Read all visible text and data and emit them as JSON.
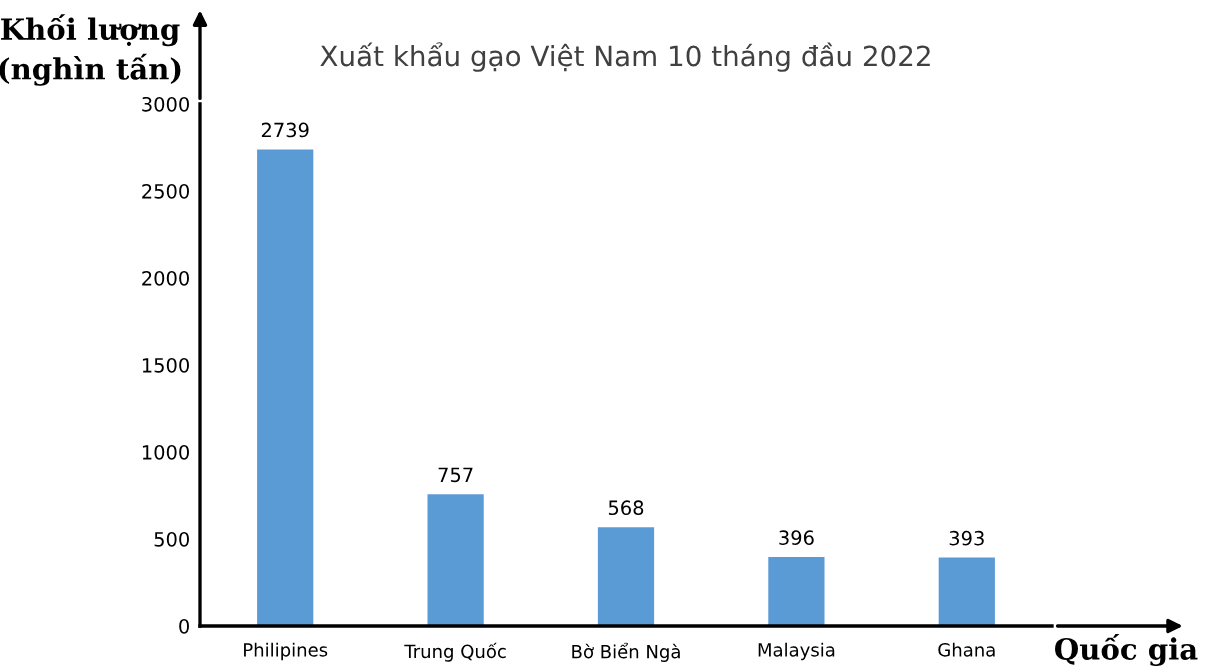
{
  "chart_data": {
    "type": "bar",
    "title": "Xuất khẩu gạo Việt Nam 10 tháng đầu 2022",
    "xlabel": "Quốc gia",
    "ylabel": "Khối lượng\n(nghìn tấn)",
    "categories": [
      "Philipines",
      "Trung Quốc",
      "Bờ Biển Ngà",
      "Malaysia",
      "Ghana"
    ],
    "values": [
      2739,
      757,
      568,
      396,
      393
    ],
    "color": "#5b9bd5",
    "ylim": [
      0,
      3000
    ],
    "yticks": [
      0,
      500,
      1000,
      1500,
      2000,
      2500,
      3000
    ],
    "grid": false,
    "data_labels": true
  }
}
